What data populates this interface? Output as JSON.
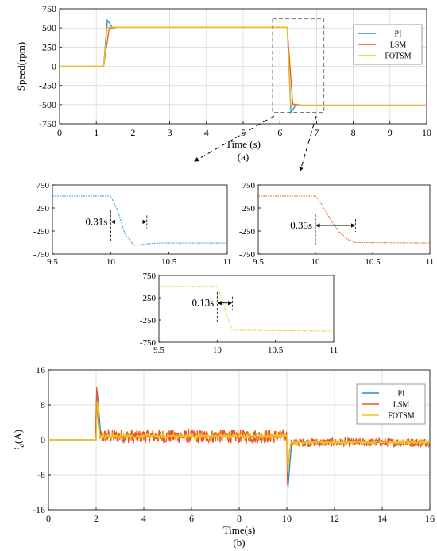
{
  "colors": {
    "PI": "#1f8fd0",
    "LSM": "#e8562a",
    "FOTSM": "#f2c31b"
  },
  "chart_data": [
    {
      "id": "speed",
      "type": "line",
      "ylabel": "Speed(rpm)",
      "xlabel": "Time (s)",
      "caption": "(a)",
      "xlim": [
        0,
        10
      ],
      "ylim": [
        -750,
        750
      ],
      "xticks": [
        0,
        1,
        2,
        3,
        4,
        5,
        6,
        7,
        8,
        9,
        10
      ],
      "yticks": [
        750,
        500,
        250,
        0,
        -250,
        -500,
        -750
      ],
      "grid": true,
      "legend_position": "top-right",
      "series": [
        {
          "name": "PI",
          "x": [
            0,
            1.2,
            1.3,
            1.45,
            1.6,
            6.2,
            6.3,
            6.45,
            6.6,
            10
          ],
          "y": [
            0,
            0,
            600,
            500,
            510,
            510,
            -600,
            -500,
            -510,
            -510
          ]
        },
        {
          "name": "LSM",
          "x": [
            0,
            1.2,
            1.35,
            1.5,
            6.2,
            6.35,
            6.5,
            10
          ],
          "y": [
            0,
            0,
            490,
            510,
            510,
            -490,
            -510,
            -510
          ]
        },
        {
          "name": "FOTSM",
          "x": [
            0,
            1.2,
            1.3,
            6.2,
            6.3,
            10
          ],
          "y": [
            0,
            0,
            510,
            510,
            -510,
            -510
          ]
        }
      ],
      "zoom_box": {
        "x": [
          5.8,
          7.2
        ],
        "y": [
          -600,
          620
        ]
      }
    },
    {
      "id": "zoom_pi",
      "type": "line",
      "xlim": [
        9.5,
        11
      ],
      "ylim": [
        -750,
        750
      ],
      "xticks": [
        9.5,
        10,
        10.5,
        11
      ],
      "xtick_labels": [
        "9.5",
        "10",
        "10.5",
        "11"
      ],
      "yticks": [
        750,
        250,
        -250,
        -750
      ],
      "series": [
        {
          "name": "PI",
          "x": [
            9.5,
            10,
            10.06,
            10.12,
            10.2,
            10.31,
            10.4,
            11
          ],
          "y": [
            510,
            510,
            200,
            -300,
            -560,
            -530,
            -510,
            -510
          ]
        }
      ],
      "annotation": {
        "text": "0.31s",
        "x0": 10,
        "x1": 10.31,
        "y": -50
      }
    },
    {
      "id": "zoom_lsm",
      "type": "line",
      "xlim": [
        9.5,
        11
      ],
      "ylim": [
        -750,
        750
      ],
      "xticks": [
        9.5,
        10,
        10.5,
        11
      ],
      "xtick_labels": [
        "9.5",
        "10",
        "10.5",
        "11"
      ],
      "yticks": [
        750,
        250,
        -250,
        -750
      ],
      "series": [
        {
          "name": "LSM",
          "x": [
            9.5,
            10,
            10.05,
            10.12,
            10.2,
            10.28,
            10.35,
            11
          ],
          "y": [
            510,
            510,
            350,
            50,
            -250,
            -430,
            -500,
            -510
          ]
        }
      ],
      "annotation": {
        "text": "0.35s",
        "x0": 10,
        "x1": 10.35,
        "y": -130
      }
    },
    {
      "id": "zoom_fotsm",
      "type": "line",
      "xlim": [
        9.5,
        11
      ],
      "ylim": [
        -750,
        750
      ],
      "xticks": [
        9.5,
        10,
        10.5,
        11
      ],
      "xtick_labels": [
        "9.5",
        "10",
        "10.5",
        "11"
      ],
      "yticks": [
        750,
        250,
        -250,
        -750
      ],
      "series": [
        {
          "name": "FOTSM",
          "x": [
            9.5,
            10,
            10.04,
            10.09,
            10.13,
            11
          ],
          "y": [
            500,
            500,
            250,
            -200,
            -480,
            -500
          ]
        }
      ],
      "annotation": {
        "text": "0.13s",
        "x0": 10,
        "x1": 10.13,
        "y": 130
      }
    },
    {
      "id": "current",
      "type": "line",
      "ylabel": "i",
      "ylabel_sub": "q",
      "ylabel_suffix": "(A)",
      "xlabel": "Time(s)",
      "caption": "(b)",
      "xlim": [
        0,
        16
      ],
      "ylim": [
        -16,
        16
      ],
      "xticks": [
        0,
        2,
        4,
        6,
        8,
        10,
        12,
        14,
        16
      ],
      "yticks": [
        16,
        8,
        0,
        -8,
        -16
      ],
      "grid": true,
      "legend_position": "top-right",
      "series": [
        {
          "name": "PI",
          "x": [
            0,
            2,
            2.05,
            2.2,
            10,
            10.05,
            10.2,
            16
          ],
          "y": [
            0,
            0,
            11,
            0.8,
            0.8,
            -11,
            -0.6,
            -0.6
          ]
        },
        {
          "name": "LSM",
          "x": [
            0,
            1.98,
            2.02,
            2.1,
            2.2,
            10,
            10.02,
            10.1,
            10.2,
            16
          ],
          "y": [
            0,
            0,
            13,
            2,
            0.8,
            0.8,
            -10,
            -3,
            -0.6,
            -0.6
          ],
          "noise": [
            1.6,
            1.0
          ]
        },
        {
          "name": "FOTSM",
          "x": [
            0,
            2,
            2.05,
            2.15,
            10,
            10.05,
            10.15,
            16
          ],
          "y": [
            0,
            0,
            10,
            0.8,
            0.8,
            -8,
            -0.6,
            -0.6
          ],
          "noise": [
            0.5,
            0.3
          ]
        }
      ]
    }
  ]
}
